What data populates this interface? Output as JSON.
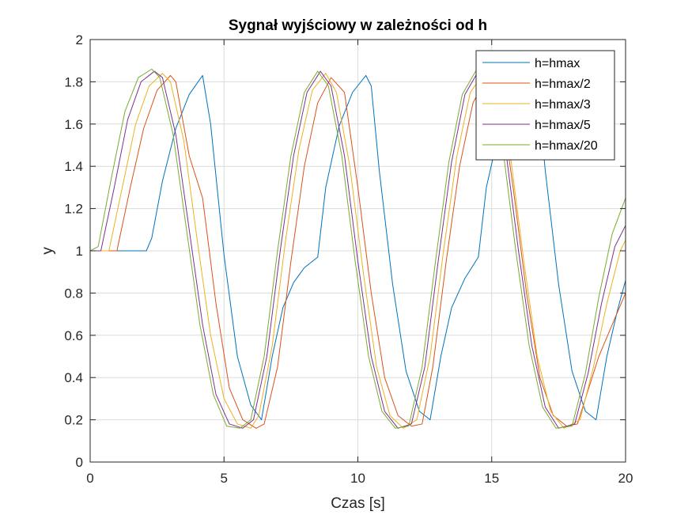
{
  "chart_data": {
    "type": "line",
    "title": "Sygnał wyjściowy w zależności od h",
    "xlabel": "Czas [s]",
    "ylabel": "y",
    "xlim": [
      0,
      20
    ],
    "ylim": [
      0,
      2
    ],
    "xticks": [
      0,
      5,
      10,
      15,
      20
    ],
    "yticks": [
      0,
      0.2,
      0.4,
      0.6,
      0.8,
      1,
      1.2,
      1.4,
      1.6,
      1.8,
      2
    ],
    "grid": true,
    "legend_position": "top-right",
    "series": [
      {
        "name": "h=hmax",
        "color": "#0072BD",
        "x": [
          0,
          2.1,
          2.3,
          2.7,
          3.2,
          3.7,
          4.2,
          4.5,
          5.0,
          5.5,
          6.0,
          6.4,
          6.8,
          7.2,
          7.6,
          8.0,
          8.5,
          8.8,
          9.3,
          9.8,
          10.3,
          10.5,
          10.8,
          11.3,
          11.8,
          12.3,
          12.7,
          13.1,
          13.5,
          14.0,
          14.5,
          14.8,
          15.3,
          15.8,
          16.3,
          16.7,
          17.0,
          17.5,
          18.0,
          18.5,
          18.9,
          19.3,
          19.7,
          20.0
        ],
        "y": [
          1.0,
          1.0,
          1.06,
          1.33,
          1.58,
          1.74,
          1.83,
          1.6,
          0.98,
          0.5,
          0.27,
          0.2,
          0.5,
          0.73,
          0.85,
          0.92,
          0.97,
          1.3,
          1.59,
          1.75,
          1.83,
          1.78,
          1.38,
          0.84,
          0.43,
          0.24,
          0.2,
          0.5,
          0.73,
          0.87,
          0.97,
          1.3,
          1.58,
          1.73,
          1.83,
          1.78,
          1.38,
          0.84,
          0.43,
          0.24,
          0.2,
          0.5,
          0.72,
          0.86
        ]
      },
      {
        "name": "h=hmax/2",
        "color": "#D95319",
        "x": [
          0,
          1.0,
          1.5,
          2.0,
          2.5,
          3.0,
          3.2,
          3.7,
          4.2,
          4.7,
          5.2,
          5.7,
          6.2,
          6.5,
          7.0,
          7.5,
          8.0,
          8.5,
          9.0,
          9.5,
          10.0,
          10.5,
          11.0,
          11.5,
          12.0,
          12.4,
          12.8,
          13.3,
          13.8,
          14.3,
          14.8,
          15.3,
          15.8,
          16.3,
          16.8,
          17.3,
          17.8,
          18.2,
          18.5,
          19.0,
          19.5,
          20.0
        ],
        "y": [
          1.0,
          1.0,
          1.3,
          1.58,
          1.76,
          1.83,
          1.8,
          1.45,
          1.25,
          0.75,
          0.35,
          0.2,
          0.16,
          0.18,
          0.45,
          0.95,
          1.4,
          1.7,
          1.82,
          1.75,
          1.3,
          0.8,
          0.4,
          0.22,
          0.17,
          0.18,
          0.45,
          0.95,
          1.4,
          1.7,
          1.82,
          1.75,
          1.3,
          0.8,
          0.4,
          0.22,
          0.17,
          0.18,
          0.3,
          0.5,
          0.65,
          0.8
        ]
      },
      {
        "name": "h=hmax/3",
        "color": "#EDB120",
        "x": [
          0,
          0.7,
          1.2,
          1.7,
          2.2,
          2.7,
          3.0,
          3.5,
          4.0,
          4.5,
          5.0,
          5.5,
          6.0,
          6.3,
          6.8,
          7.3,
          7.8,
          8.3,
          8.8,
          9.2,
          9.7,
          10.2,
          10.7,
          11.2,
          11.7,
          12.2,
          12.7,
          13.2,
          13.7,
          14.2,
          14.7,
          15.2,
          15.7,
          16.2,
          16.7,
          17.2,
          17.7,
          18.3,
          18.8,
          19.3,
          19.8,
          20.0
        ],
        "y": [
          1.0,
          1.0,
          1.3,
          1.6,
          1.78,
          1.84,
          1.8,
          1.52,
          1.05,
          0.6,
          0.3,
          0.18,
          0.16,
          0.22,
          0.55,
          1.05,
          1.48,
          1.76,
          1.84,
          1.75,
          1.4,
          0.9,
          0.45,
          0.22,
          0.16,
          0.2,
          0.5,
          1.0,
          1.45,
          1.75,
          1.84,
          1.78,
          1.45,
          0.95,
          0.5,
          0.24,
          0.16,
          0.2,
          0.45,
          0.75,
          1.0,
          1.05
        ]
      },
      {
        "name": "h=hmax/5",
        "color": "#7E2F8E",
        "x": [
          0,
          0.4,
          0.9,
          1.4,
          1.9,
          2.4,
          2.7,
          3.2,
          3.7,
          4.2,
          4.7,
          5.2,
          5.7,
          6.1,
          6.6,
          7.1,
          7.6,
          8.1,
          8.6,
          9.0,
          9.5,
          10.0,
          10.5,
          11.0,
          11.5,
          12.0,
          12.5,
          13.0,
          13.5,
          14.0,
          14.5,
          15.0,
          15.5,
          16.0,
          16.5,
          17.0,
          17.5,
          18.1,
          18.6,
          19.1,
          19.6,
          20.0
        ],
        "y": [
          1.0,
          1.0,
          1.3,
          1.62,
          1.8,
          1.85,
          1.82,
          1.55,
          1.1,
          0.65,
          0.32,
          0.18,
          0.16,
          0.2,
          0.5,
          1.0,
          1.45,
          1.75,
          1.85,
          1.78,
          1.45,
          0.95,
          0.5,
          0.24,
          0.16,
          0.18,
          0.45,
          0.95,
          1.42,
          1.74,
          1.85,
          1.8,
          1.5,
          1.0,
          0.55,
          0.26,
          0.16,
          0.18,
          0.42,
          0.75,
          1.02,
          1.12
        ]
      },
      {
        "name": "h=hmax/20",
        "color": "#77AC30",
        "x": [
          0,
          0.3,
          0.8,
          1.3,
          1.8,
          2.3,
          2.6,
          3.1,
          3.6,
          4.1,
          4.6,
          5.1,
          5.6,
          6.0,
          6.5,
          7.0,
          7.5,
          8.0,
          8.5,
          8.9,
          9.4,
          9.9,
          10.4,
          10.9,
          11.4,
          11.9,
          12.4,
          12.9,
          13.4,
          13.9,
          14.4,
          14.9,
          15.4,
          15.9,
          16.4,
          16.9,
          17.4,
          18.0,
          18.5,
          19.0,
          19.5,
          20.0
        ],
        "y": [
          1.0,
          1.02,
          1.35,
          1.66,
          1.82,
          1.86,
          1.82,
          1.55,
          1.1,
          0.65,
          0.32,
          0.17,
          0.16,
          0.2,
          0.5,
          1.0,
          1.45,
          1.75,
          1.85,
          1.78,
          1.45,
          0.95,
          0.5,
          0.24,
          0.16,
          0.17,
          0.45,
          0.95,
          1.42,
          1.74,
          1.85,
          1.8,
          1.5,
          1.0,
          0.55,
          0.26,
          0.16,
          0.17,
          0.42,
          0.78,
          1.08,
          1.25
        ]
      }
    ]
  }
}
